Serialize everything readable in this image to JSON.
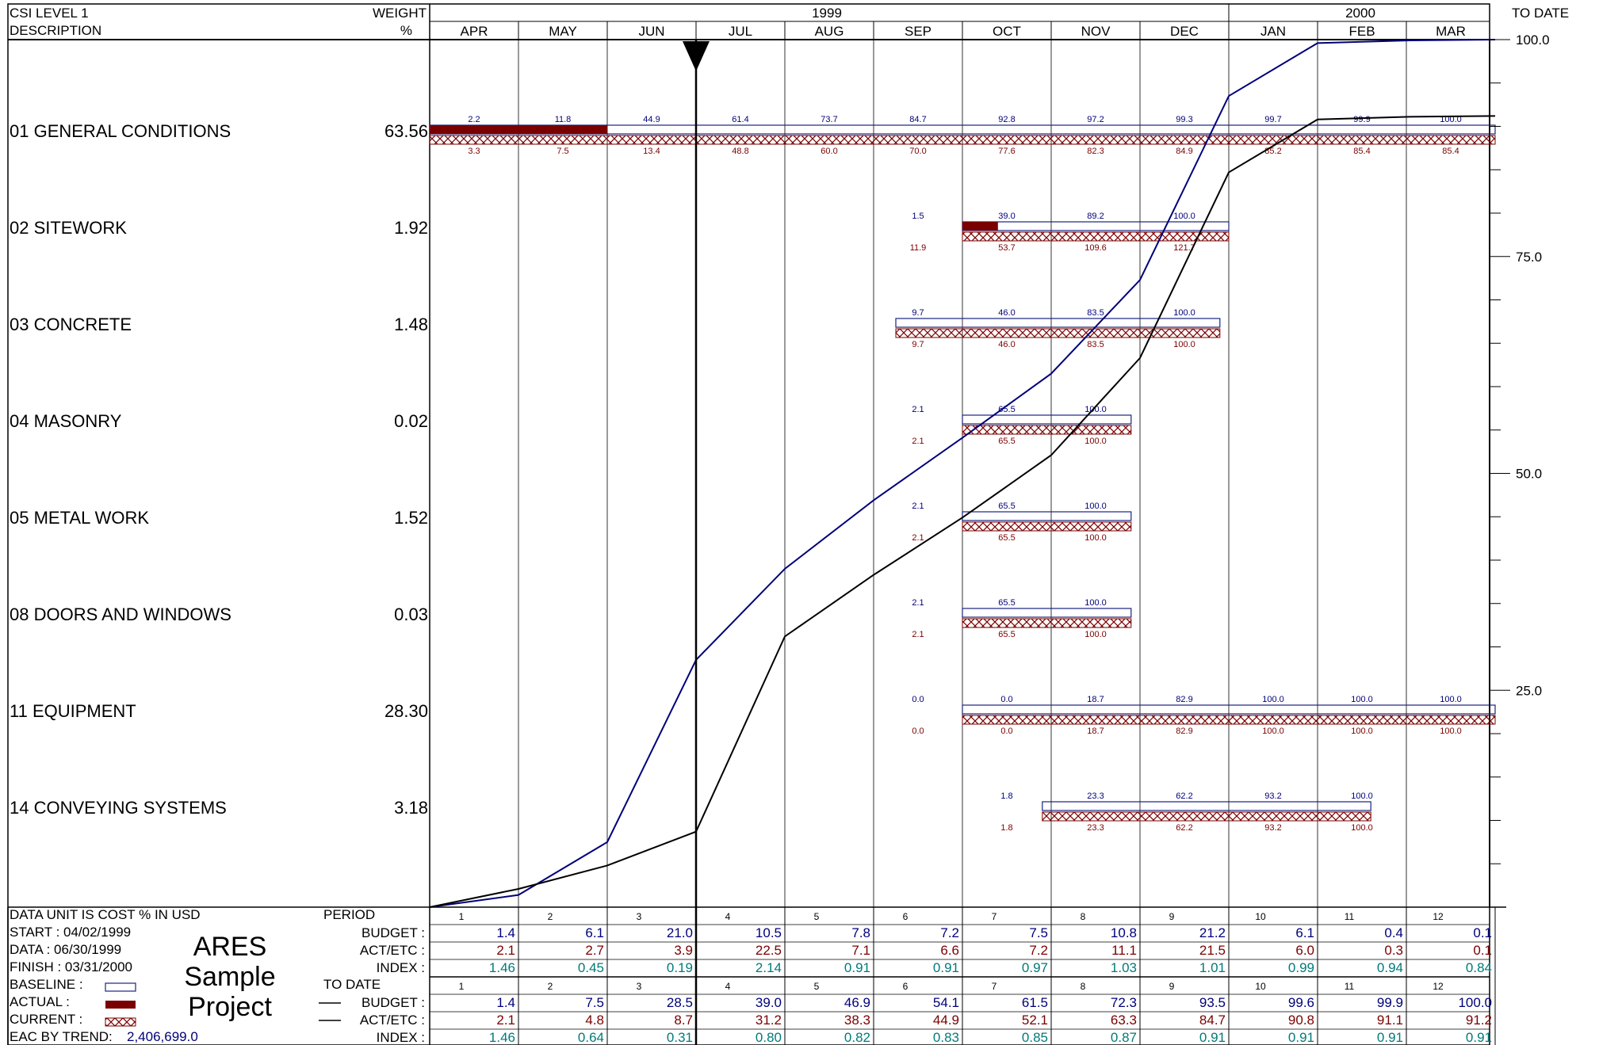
{
  "header": {
    "desc_line1": "CSI LEVEL 1",
    "desc_line2": "DESCRIPTION",
    "weight_line1": "WEIGHT",
    "weight_line2": "%",
    "year1": "1999",
    "year2": "2000",
    "months": [
      "APR",
      "MAY",
      "JUN",
      "JUL",
      "AUG",
      "SEP",
      "OCT",
      "NOV",
      "DEC",
      "JAN",
      "FEB",
      "MAR"
    ],
    "right_label": "TO DATE"
  },
  "axis": {
    "right_ticks": [
      100.0,
      75.0,
      50.0,
      25.0
    ],
    "tick_labels": [
      "100.0",
      "75.0",
      "50.0",
      "25.0"
    ],
    "ylim": [
      0,
      100
    ]
  },
  "colors": {
    "baseline": "#1a237e",
    "actual": "#7a0000",
    "act_line": "#000000",
    "budget_line": "#00007a",
    "index": "#007a7a"
  },
  "chart_data": {
    "type": "line",
    "x": [
      "APR",
      "MAY",
      "JUN",
      "JUL",
      "AUG",
      "SEP",
      "OCT",
      "NOV",
      "DEC",
      "JAN",
      "FEB",
      "MAR"
    ],
    "ylim": [
      0,
      100
    ],
    "series": [
      {
        "values": [
          1.4,
          7.5,
          28.5,
          39.0,
          46.9,
          54.1,
          61.5,
          72.3,
          93.5,
          99.6,
          99.9,
          100.0
        ]
      },
      {
        "values": [
          2.1,
          4.8,
          8.7,
          31.2,
          38.3,
          44.9,
          52.1,
          63.3,
          84.7,
          90.8,
          91.1,
          91.2
        ]
      }
    ],
    "rows": [
      {
        "name": "01 GENERAL CONDITIONS",
        "weight": "63.56",
        "baseline": [
          0,
          12
        ],
        "actual": [
          0,
          2
        ],
        "top_labels": [
          {
            "m": 0,
            "t": "2.2"
          },
          {
            "m": 1,
            "t": "11.8"
          },
          {
            "m": 2,
            "t": "44.9"
          },
          {
            "m": 3,
            "t": "61.4"
          },
          {
            "m": 4,
            "t": "73.7"
          },
          {
            "m": 5,
            "t": "84.7"
          },
          {
            "m": 6,
            "t": "92.8"
          },
          {
            "m": 7,
            "t": "97.2"
          },
          {
            "m": 8,
            "t": "99.3"
          },
          {
            "m": 9,
            "t": "99.7"
          },
          {
            "m": 10,
            "t": "99.9"
          },
          {
            "m": 11,
            "t": "100.0"
          }
        ],
        "bottom_labels": [
          {
            "m": 0,
            "t": "3.3"
          },
          {
            "m": 1,
            "t": "7.5"
          },
          {
            "m": 2,
            "t": "13.4"
          },
          {
            "m": 3,
            "t": "48.8"
          },
          {
            "m": 4,
            "t": "60.0"
          },
          {
            "m": 5,
            "t": "70.0"
          },
          {
            "m": 6,
            "t": "77.6"
          },
          {
            "m": 7,
            "t": "82.3"
          },
          {
            "m": 8,
            "t": "84.9"
          },
          {
            "m": 9,
            "t": "85.2"
          },
          {
            "m": 10,
            "t": "85.4"
          },
          {
            "m": 11,
            "t": "85.4"
          }
        ]
      },
      {
        "name": "02 SITEWORK",
        "weight": "1.92",
        "baseline": [
          6,
          9
        ],
        "actual": [
          6,
          6.4
        ],
        "top_labels": [
          {
            "m": 5,
            "t": "1.5"
          },
          {
            "m": 6,
            "t": "39.0"
          },
          {
            "m": 7,
            "t": "89.2"
          },
          {
            "m": 8,
            "t": "100.0"
          }
        ],
        "bottom_labels": [
          {
            "m": 5,
            "t": "11.9"
          },
          {
            "m": 6,
            "t": "53.7"
          },
          {
            "m": 7,
            "t": "109.6"
          },
          {
            "m": 8,
            "t": "121.7"
          }
        ]
      },
      {
        "name": "03 CONCRETE",
        "weight": "1.48",
        "baseline": [
          5.25,
          8.9
        ],
        "actual": null,
        "top_labels": [
          {
            "m": 5,
            "t": "9.7"
          },
          {
            "m": 6,
            "t": "46.0"
          },
          {
            "m": 7,
            "t": "83.5"
          },
          {
            "m": 8,
            "t": "100.0"
          }
        ],
        "bottom_labels": [
          {
            "m": 5,
            "t": "9.7"
          },
          {
            "m": 6,
            "t": "46.0"
          },
          {
            "m": 7,
            "t": "83.5"
          },
          {
            "m": 8,
            "t": "100.0"
          }
        ]
      },
      {
        "name": "04 MASONRY",
        "weight": "0.02",
        "baseline": [
          6,
          7.9
        ],
        "actual": null,
        "top_labels": [
          {
            "m": 5,
            "t": "2.1"
          },
          {
            "m": 6,
            "t": "65.5"
          },
          {
            "m": 7,
            "t": "100.0"
          }
        ],
        "bottom_labels": [
          {
            "m": 5,
            "t": "2.1"
          },
          {
            "m": 6,
            "t": "65.5"
          },
          {
            "m": 7,
            "t": "100.0"
          }
        ]
      },
      {
        "name": "05 METAL WORK",
        "weight": "1.52",
        "baseline": [
          6,
          7.9
        ],
        "actual": null,
        "top_labels": [
          {
            "m": 5,
            "t": "2.1"
          },
          {
            "m": 6,
            "t": "65.5"
          },
          {
            "m": 7,
            "t": "100.0"
          }
        ],
        "bottom_labels": [
          {
            "m": 5,
            "t": "2.1"
          },
          {
            "m": 6,
            "t": "65.5"
          },
          {
            "m": 7,
            "t": "100.0"
          }
        ]
      },
      {
        "name": "08 DOORS AND WINDOWS",
        "weight": "0.03",
        "baseline": [
          6,
          7.9
        ],
        "actual": null,
        "top_labels": [
          {
            "m": 5,
            "t": "2.1"
          },
          {
            "m": 6,
            "t": "65.5"
          },
          {
            "m": 7,
            "t": "100.0"
          }
        ],
        "bottom_labels": [
          {
            "m": 5,
            "t": "2.1"
          },
          {
            "m": 6,
            "t": "65.5"
          },
          {
            "m": 7,
            "t": "100.0"
          }
        ]
      },
      {
        "name": "11 EQUIPMENT",
        "weight": "28.30",
        "baseline": [
          6,
          12
        ],
        "actual": null,
        "top_labels": [
          {
            "m": 5,
            "t": "0.0"
          },
          {
            "m": 6,
            "t": "0.0"
          },
          {
            "m": 7,
            "t": "18.7"
          },
          {
            "m": 8,
            "t": "82.9"
          },
          {
            "m": 9,
            "t": "100.0"
          },
          {
            "m": 10,
            "t": "100.0"
          },
          {
            "m": 11,
            "t": "100.0"
          }
        ],
        "bottom_labels": [
          {
            "m": 5,
            "t": "0.0"
          },
          {
            "m": 6,
            "t": "0.0"
          },
          {
            "m": 7,
            "t": "18.7"
          },
          {
            "m": 8,
            "t": "82.9"
          },
          {
            "m": 9,
            "t": "100.0"
          },
          {
            "m": 10,
            "t": "100.0"
          },
          {
            "m": 11,
            "t": "100.0"
          }
        ]
      },
      {
        "name": "14 CONVEYING SYSTEMS",
        "weight": "3.18",
        "baseline": [
          6.9,
          10.6
        ],
        "actual": null,
        "top_labels": [
          {
            "m": 6,
            "t": "1.8"
          },
          {
            "m": 7,
            "t": "23.3"
          },
          {
            "m": 8,
            "t": "62.2"
          },
          {
            "m": 9,
            "t": "93.2"
          },
          {
            "m": 10,
            "t": "100.0"
          }
        ],
        "bottom_labels": [
          {
            "m": 6,
            "t": "1.8"
          },
          {
            "m": 7,
            "t": "23.3"
          },
          {
            "m": 8,
            "t": "62.2"
          },
          {
            "m": 9,
            "t": "93.2"
          },
          {
            "m": 10,
            "t": "100.0"
          }
        ]
      }
    ],
    "data_date_month": 3
  },
  "footer": {
    "unit_label": "DATA UNIT IS COST % IN USD",
    "period_label": "PERIOD",
    "todate_label": "TO DATE",
    "start": "START : 04/02/1999",
    "data": "DATA   : 06/30/1999",
    "finish": "FINISH : 03/31/2000",
    "baseline": "BASELINE   :",
    "actual": "ACTUAL     :",
    "current": "CURRENT   :",
    "eac_label": "EAC BY TREND:",
    "eac_value": "2,406,699.0",
    "project_line1": "ARES",
    "project_line2": "Sample",
    "project_line3": "Project",
    "row_labels": {
      "budget": "BUDGET :",
      "act": "ACT/ETC :",
      "index": "INDEX :"
    },
    "periods": [
      "1",
      "2",
      "3",
      "4",
      "5",
      "6",
      "7",
      "8",
      "9",
      "10",
      "11",
      "12"
    ],
    "period_budget": [
      "1.4",
      "6.1",
      "21.0",
      "10.5",
      "7.8",
      "7.2",
      "7.5",
      "10.8",
      "21.2",
      "6.1",
      "0.4",
      "0.1"
    ],
    "period_act": [
      "2.1",
      "2.7",
      "3.9",
      "22.5",
      "7.1",
      "6.6",
      "7.2",
      "11.1",
      "21.5",
      "6.0",
      "0.3",
      "0.1"
    ],
    "period_index": [
      "1.46",
      "0.45",
      "0.19",
      "2.14",
      "0.91",
      "0.91",
      "0.97",
      "1.03",
      "1.01",
      "0.99",
      "0.94",
      "0.84"
    ],
    "todate_budget": [
      "1.4",
      "7.5",
      "28.5",
      "39.0",
      "46.9",
      "54.1",
      "61.5",
      "72.3",
      "93.5",
      "99.6",
      "99.9",
      "100.0"
    ],
    "todate_act": [
      "2.1",
      "4.8",
      "8.7",
      "31.2",
      "38.3",
      "44.9",
      "52.1",
      "63.3",
      "84.7",
      "90.8",
      "91.1",
      "91.2"
    ],
    "todate_index": [
      "1.46",
      "0.64",
      "0.31",
      "0.80",
      "0.82",
      "0.83",
      "0.85",
      "0.87",
      "0.91",
      "0.91",
      "0.91",
      "0.91"
    ]
  }
}
